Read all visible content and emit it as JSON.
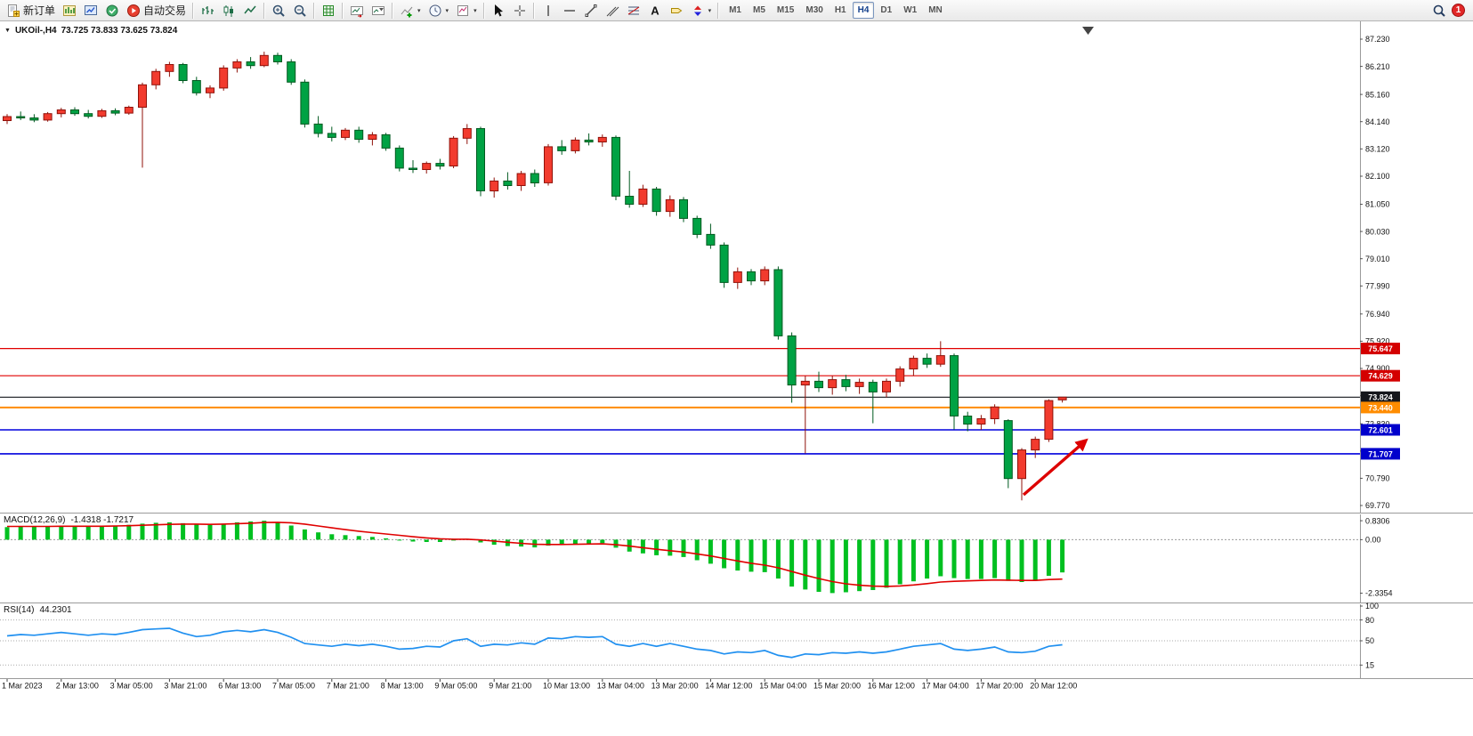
{
  "toolbar": {
    "new_order_label": "新订单",
    "auto_trading_label": "自动交易",
    "timeframes": [
      "M1",
      "M5",
      "M15",
      "M30",
      "H1",
      "H4",
      "D1",
      "W1",
      "MN"
    ],
    "active_timeframe": "H4",
    "notification_count": "1"
  },
  "chart": {
    "symbol": "UKOil-,H4",
    "ohlc": "73.725 73.833 73.625 73.824",
    "price_ticks": [
      "87.230",
      "86.210",
      "85.160",
      "84.140",
      "83.120",
      "82.100",
      "81.050",
      "80.030",
      "79.010",
      "77.990",
      "76.940",
      "75.920",
      "74.900",
      "73.880",
      "72.830",
      "71.810",
      "70.790",
      "69.770"
    ],
    "hlines": [
      {
        "price": 75.647,
        "label": "75.647",
        "color": "#e00000",
        "badge": "#d40000",
        "width": 1.2
      },
      {
        "price": 74.629,
        "label": "74.629",
        "color": "#e00000",
        "badge": "#d40000",
        "width": 1.2
      },
      {
        "price": 73.824,
        "label": "73.824",
        "color": "#15171c",
        "badge": "#15171c",
        "width": 1.2
      },
      {
        "price": 73.44,
        "label": "73.440",
        "color": "#ff8c00",
        "badge": "#ff8c00",
        "width": 2
      },
      {
        "price": 72.601,
        "label": "72.601",
        "color": "#0000dd",
        "badge": "#0000cc",
        "width": 1.6
      },
      {
        "price": 71.707,
        "label": "71.707",
        "color": "#0000dd",
        "badge": "#0000cc",
        "width": 1.6
      }
    ],
    "time_labels": [
      "1 Mar 2023",
      "2 Mar 13:00",
      "3 Mar 05:00",
      "3 Mar 21:00",
      "6 Mar 13:00",
      "7 Mar 05:00",
      "7 Mar 21:00",
      "8 Mar 13:00",
      "9 Mar 05:00",
      "9 Mar 21:00",
      "10 Mar 13:00",
      "13 Mar 04:00",
      "13 Mar 20:00",
      "14 Mar 12:00",
      "15 Mar 04:00",
      "15 Mar 20:00",
      "16 Mar 12:00",
      "17 Mar 04:00",
      "17 Mar 20:00",
      "20 Mar 12:00"
    ],
    "colors": {
      "bull_fill": "#f23b2e",
      "bull_stroke": "#90120a",
      "bear_fill": "#00a244",
      "bear_stroke": "#005a20",
      "macd_hist": "#00c020",
      "macd_signal": "#e00000",
      "rsi_line": "#2090f0",
      "arrow": "#dd0000"
    },
    "candles": [
      [
        84.18,
        84.42,
        84.05,
        84.33
      ],
      [
        84.33,
        84.52,
        84.2,
        84.28
      ],
      [
        84.28,
        84.42,
        84.12,
        84.2
      ],
      [
        84.2,
        84.5,
        84.14,
        84.44
      ],
      [
        84.44,
        84.66,
        84.3,
        84.58
      ],
      [
        84.58,
        84.68,
        84.36,
        84.44
      ],
      [
        84.44,
        84.58,
        84.26,
        84.34
      ],
      [
        84.34,
        84.62,
        84.28,
        84.55
      ],
      [
        84.55,
        84.64,
        84.38,
        84.46
      ],
      [
        84.46,
        84.74,
        84.4,
        84.68
      ],
      [
        84.68,
        85.6,
        82.42,
        85.52
      ],
      [
        85.52,
        86.12,
        85.35,
        86.02
      ],
      [
        86.02,
        86.38,
        85.82,
        86.28
      ],
      [
        86.28,
        86.34,
        85.58,
        85.68
      ],
      [
        85.68,
        85.82,
        85.12,
        85.22
      ],
      [
        85.22,
        85.5,
        85.02,
        85.4
      ],
      [
        85.4,
        86.25,
        85.3,
        86.15
      ],
      [
        86.15,
        86.48,
        85.98,
        86.38
      ],
      [
        86.38,
        86.56,
        86.12,
        86.24
      ],
      [
        86.24,
        86.76,
        86.18,
        86.62
      ],
      [
        86.62,
        86.72,
        86.28,
        86.38
      ],
      [
        86.38,
        86.48,
        85.52,
        85.62
      ],
      [
        85.62,
        85.72,
        83.92,
        84.05
      ],
      [
        84.05,
        84.35,
        83.55,
        83.7
      ],
      [
        83.7,
        83.95,
        83.4,
        83.55
      ],
      [
        83.55,
        83.9,
        83.45,
        83.82
      ],
      [
        83.82,
        83.95,
        83.35,
        83.48
      ],
      [
        83.48,
        83.75,
        83.25,
        83.65
      ],
      [
        83.65,
        83.72,
        83.05,
        83.15
      ],
      [
        83.15,
        83.25,
        82.28,
        82.4
      ],
      [
        82.4,
        82.7,
        82.22,
        82.35
      ],
      [
        82.35,
        82.65,
        82.2,
        82.58
      ],
      [
        82.58,
        82.75,
        82.35,
        82.48
      ],
      [
        82.48,
        83.6,
        82.4,
        83.52
      ],
      [
        83.52,
        84.05,
        83.3,
        83.88
      ],
      [
        83.88,
        83.95,
        81.35,
        81.55
      ],
      [
        81.55,
        82.05,
        81.3,
        81.92
      ],
      [
        81.92,
        82.25,
        81.6,
        81.75
      ],
      [
        81.75,
        82.3,
        81.55,
        82.2
      ],
      [
        82.2,
        82.35,
        81.7,
        81.85
      ],
      [
        81.85,
        83.3,
        81.75,
        83.2
      ],
      [
        83.2,
        83.45,
        82.9,
        83.05
      ],
      [
        83.05,
        83.55,
        82.95,
        83.45
      ],
      [
        83.45,
        83.7,
        83.25,
        83.38
      ],
      [
        83.38,
        83.66,
        83.2,
        83.55
      ],
      [
        83.55,
        83.62,
        81.2,
        81.35
      ],
      [
        81.35,
        82.3,
        80.92,
        81.05
      ],
      [
        81.05,
        81.78,
        80.95,
        81.62
      ],
      [
        81.62,
        81.7,
        80.62,
        80.78
      ],
      [
        80.78,
        81.38,
        80.58,
        81.22
      ],
      [
        81.22,
        81.32,
        80.38,
        80.52
      ],
      [
        80.52,
        80.62,
        79.78,
        79.92
      ],
      [
        79.92,
        80.32,
        79.38,
        79.52
      ],
      [
        79.52,
        79.62,
        77.92,
        78.12
      ],
      [
        78.12,
        78.68,
        77.88,
        78.52
      ],
      [
        78.52,
        78.62,
        78.02,
        78.18
      ],
      [
        78.18,
        78.72,
        78.02,
        78.6
      ],
      [
        78.6,
        78.72,
        75.98,
        76.12
      ],
      [
        76.12,
        76.25,
        73.62,
        74.28
      ],
      [
        74.28,
        74.62,
        71.72,
        74.42
      ],
      [
        74.42,
        74.78,
        74.02,
        74.18
      ],
      [
        74.18,
        74.62,
        73.92,
        74.48
      ],
      [
        74.48,
        74.66,
        74.05,
        74.22
      ],
      [
        74.22,
        74.52,
        73.95,
        74.38
      ],
      [
        74.38,
        74.48,
        72.85,
        74.02
      ],
      [
        74.02,
        74.52,
        73.82,
        74.42
      ],
      [
        74.42,
        74.98,
        74.22,
        74.88
      ],
      [
        74.88,
        75.38,
        74.62,
        75.28
      ],
      [
        75.28,
        75.46,
        74.92,
        75.06
      ],
      [
        75.06,
        75.92,
        74.96,
        75.38
      ],
      [
        75.38,
        75.46,
        72.62,
        73.12
      ],
      [
        73.12,
        73.28,
        72.55,
        72.82
      ],
      [
        72.82,
        73.16,
        72.6,
        73.02
      ],
      [
        73.02,
        73.56,
        72.82,
        73.46
      ],
      [
        72.95,
        73.0,
        70.42,
        70.78
      ],
      [
        70.78,
        71.92,
        69.96,
        71.85
      ],
      [
        71.85,
        72.35,
        71.55,
        72.25
      ],
      [
        72.25,
        73.75,
        72.15,
        73.7
      ],
      [
        73.725,
        73.833,
        73.625,
        73.824
      ]
    ]
  },
  "macd": {
    "label": "MACD(12,26,9)",
    "values_text": "-1.4318 -1.7217",
    "axis": [
      "0.8306",
      "0.00",
      "-2.3354"
    ],
    "histogram": [
      0.55,
      0.57,
      0.56,
      0.58,
      0.6,
      0.59,
      0.58,
      0.6,
      0.62,
      0.65,
      0.7,
      0.74,
      0.76,
      0.72,
      0.66,
      0.64,
      0.7,
      0.76,
      0.8,
      0.8306,
      0.78,
      0.62,
      0.45,
      0.32,
      0.24,
      0.2,
      0.16,
      0.12,
      0.06,
      -0.02,
      -0.08,
      -0.1,
      -0.1,
      -0.02,
      0.04,
      -0.12,
      -0.22,
      -0.28,
      -0.3,
      -0.34,
      -0.26,
      -0.22,
      -0.18,
      -0.16,
      -0.15,
      -0.35,
      -0.52,
      -0.6,
      -0.68,
      -0.7,
      -0.76,
      -0.9,
      -1.05,
      -1.25,
      -1.35,
      -1.4,
      -1.42,
      -1.7,
      -2.05,
      -2.18,
      -2.28,
      -2.3354,
      -2.3,
      -2.25,
      -2.2,
      -2.1,
      -1.95,
      -1.82,
      -1.7,
      -1.6,
      -1.68,
      -1.72,
      -1.72,
      -1.68,
      -1.8,
      -1.85,
      -1.8,
      -1.58,
      -1.4318
    ],
    "signal": [
      0.58,
      0.58,
      0.58,
      0.58,
      0.59,
      0.59,
      0.59,
      0.59,
      0.6,
      0.61,
      0.63,
      0.65,
      0.67,
      0.68,
      0.68,
      0.67,
      0.68,
      0.7,
      0.72,
      0.75,
      0.76,
      0.74,
      0.68,
      0.6,
      0.52,
      0.44,
      0.37,
      0.31,
      0.25,
      0.19,
      0.13,
      0.08,
      0.04,
      0.02,
      0.02,
      -0.01,
      -0.06,
      -0.11,
      -0.16,
      -0.2,
      -0.21,
      -0.21,
      -0.2,
      -0.19,
      -0.18,
      -0.22,
      -0.28,
      -0.35,
      -0.42,
      -0.48,
      -0.54,
      -0.62,
      -0.71,
      -0.82,
      -0.93,
      -1.03,
      -1.11,
      -1.23,
      -1.39,
      -1.55,
      -1.7,
      -1.83,
      -1.93,
      -1.99,
      -2.03,
      -2.04,
      -2.02,
      -1.98,
      -1.92,
      -1.85,
      -1.82,
      -1.8,
      -1.78,
      -1.76,
      -1.77,
      -1.78,
      -1.78,
      -1.74,
      -1.7217
    ]
  },
  "rsi": {
    "label": "RSI(14)",
    "value_text": "44.2301",
    "axis": [
      "100",
      "80",
      "50",
      "15"
    ],
    "levels": [
      80,
      50,
      15
    ],
    "line": [
      57,
      59,
      58,
      60,
      62,
      60,
      58,
      60,
      59,
      62,
      66,
      67,
      68,
      61,
      56,
      58,
      63,
      65,
      63,
      66,
      62,
      55,
      46,
      44,
      42,
      45,
      43,
      45,
      42,
      38,
      39,
      42,
      41,
      50,
      53,
      42,
      45,
      44,
      47,
      45,
      54,
      53,
      56,
      55,
      56,
      45,
      42,
      46,
      42,
      46,
      42,
      38,
      36,
      31,
      34,
      33,
      36,
      29,
      26,
      31,
      30,
      33,
      32,
      34,
      32,
      34,
      38,
      42,
      44,
      46,
      38,
      36,
      38,
      41,
      34,
      33,
      35,
      42,
      44.2301
    ]
  }
}
